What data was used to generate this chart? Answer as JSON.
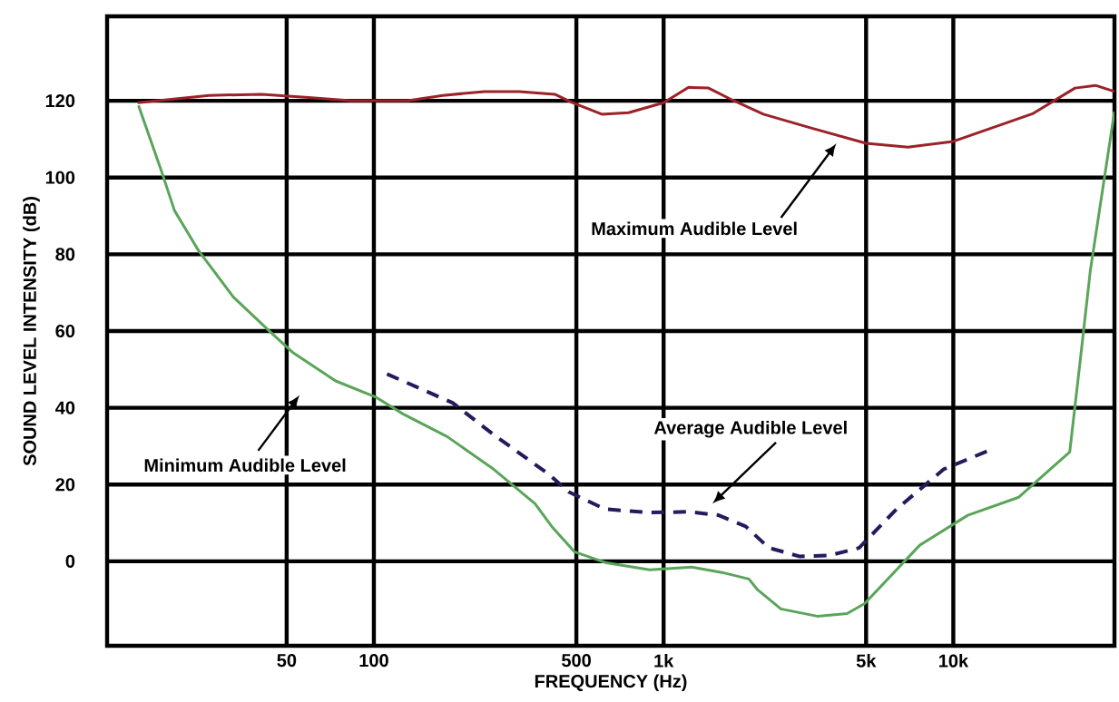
{
  "chart_data": {
    "type": "line",
    "xlabel": "FREQUENCY (Hz)",
    "ylabel": "SOUND LEVEL INTENSITY (dB)",
    "log": "x",
    "grid": true,
    "marker": "none",
    "xlim": [
      12,
      36000
    ],
    "ylim": [
      -22,
      142
    ],
    "xticks": [
      {
        "value": 50,
        "label": "50"
      },
      {
        "value": 100,
        "label": "100"
      },
      {
        "value": 500,
        "label": "500"
      },
      {
        "value": 1000,
        "label": "1k"
      },
      {
        "value": 5000,
        "label": "5k"
      },
      {
        "value": 10000,
        "label": "10k"
      }
    ],
    "yticks": [
      0,
      20,
      40,
      60,
      80,
      100,
      120
    ],
    "series": [
      {
        "color": "#9b2228",
        "line_style": "solid",
        "x": [
          15.3,
          27,
          41,
          58,
          83,
          131,
          173,
          241,
          318,
          421,
          484,
          612,
          757,
          1000,
          1220,
          1430,
          1725,
          2210,
          3230,
          5000,
          6980,
          10000,
          18880,
          26300,
          30970,
          36000
        ],
        "values": [
          119.5,
          121.4,
          121.7,
          120.9,
          120,
          120,
          121.4,
          122.4,
          122.4,
          121.7,
          119.5,
          116.5,
          116.9,
          119.5,
          123.5,
          123.3,
          120.2,
          116.5,
          112.9,
          108.9,
          107.9,
          109.4,
          116.7,
          123.3,
          124,
          122.4
        ]
      },
      {
        "color": "#5aa55a",
        "line_style": "solid",
        "x": [
          15.4,
          18.5,
          20.5,
          24.8,
          32.7,
          44.3,
          52.7,
          73.8,
          102,
          126,
          179,
          259,
          360,
          411,
          492,
          628,
          896,
          1250,
          1590,
          1970,
          2110,
          2540,
          3390,
          4300,
          4940,
          7660,
          11220,
          16830,
          25230,
          27410,
          29720,
          36000
        ],
        "values": [
          118.8,
          101.6,
          91.4,
          81.0,
          68.9,
          59.5,
          54.3,
          47.0,
          42.7,
          38.4,
          32.5,
          24.0,
          15.0,
          9.1,
          2.5,
          -0.3,
          -2.2,
          -1.5,
          -2.9,
          -4.6,
          -7.4,
          -12.4,
          -14.3,
          -13.6,
          -11.0,
          4.2,
          12.0,
          16.7,
          28.5,
          52.2,
          75.8,
          117.2
        ]
      },
      {
        "color": "#221c5e",
        "line_style": "dashed",
        "x": [
          111,
          187,
          259,
          403,
          470,
          628,
          896,
          1220,
          1550,
          1920,
          2310,
          2940,
          3730,
          4730,
          6370,
          9270,
          13590
        ],
        "values": [
          48.8,
          41.3,
          33.0,
          22.6,
          18.1,
          13.6,
          12.7,
          12.9,
          12.0,
          9.1,
          3.5,
          1.3,
          1.5,
          3.5,
          13.6,
          24.0,
          29.2
        ]
      }
    ],
    "annotations": [
      "Maximum Audible Level",
      "Minimum Audible Level",
      "Average Audible Level"
    ]
  }
}
